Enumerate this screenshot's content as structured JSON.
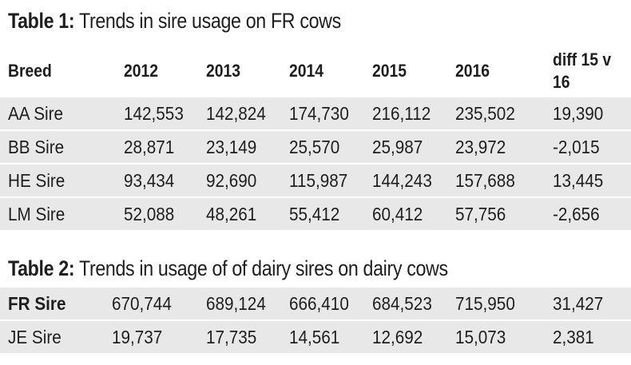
{
  "table1": {
    "title_bold": "Table 1:",
    "title_rest": " Trends in sire usage on FR cows",
    "headers": [
      "Breed",
      "2012",
      "2013",
      "2014",
      "2015",
      "2016",
      "diff 15 v 16"
    ],
    "rows": [
      [
        "AA Sire",
        "142,553",
        "142,824",
        "174,730",
        "216,112",
        "235,502",
        "19,390"
      ],
      [
        "BB Sire",
        "28,871",
        "23,149",
        "25,570",
        "25,987",
        "23,972",
        "-2,015"
      ],
      [
        "HE Sire",
        "93,434",
        "92,690",
        "115,987",
        "144,243",
        "157,688",
        "13,445"
      ],
      [
        "LM Sire",
        "52,088",
        "48,261",
        "55,412",
        "60,412",
        "57,756",
        "-2,656"
      ]
    ]
  },
  "table2": {
    "title_bold": "Table 2:",
    "title_rest": " Trends in usage of of dairy sires on dairy cows",
    "rows": [
      [
        "FR Sire",
        "670,744",
        "689,124",
        "666,410",
        "684,523",
        "715,950",
        "31,427"
      ],
      [
        "JE Sire",
        "19,737",
        "17,735",
        "14,561",
        "12,692",
        "15,073",
        "2,381"
      ]
    ]
  },
  "colors": {
    "row_background": "#e8e8e8",
    "text": "#1e1e1e"
  }
}
